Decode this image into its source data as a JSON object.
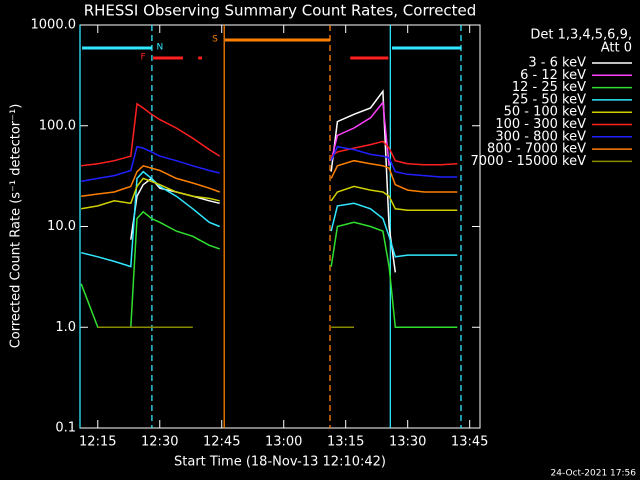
{
  "chart_data": {
    "type": "line",
    "title": "RHESSI Observing Summary Count Rates, Corrected",
    "x_label": "Start Time (18-Nov-13 12:10:42)",
    "y_label": "Corrected Count Rate (s⁻¹ detector⁻¹)",
    "legend_title": [
      "Det 1,3,4,5,6,9,",
      "Att 0"
    ],
    "footer": "24-Oct-2021 17:56",
    "ylog": true,
    "ylim": [
      0.1,
      1000
    ],
    "yticks": [
      0.1,
      {
        "value": 1,
        "label": "1.0"
      },
      {
        "value": 10,
        "label": "10.0"
      },
      {
        "value": 100,
        "label": "100.0"
      },
      {
        "value": 1000,
        "label": "1000.0"
      }
    ],
    "xlim": [
      730.7,
      827.5
    ],
    "xticks": [
      {
        "value": 735,
        "label": "12:15"
      },
      {
        "value": 750,
        "label": "12:30"
      },
      {
        "value": 765,
        "label": "12:45"
      },
      {
        "value": 780,
        "label": "13:00"
      },
      {
        "value": 795,
        "label": "13:15"
      },
      {
        "value": 810,
        "label": "13:30"
      },
      {
        "value": 825,
        "label": "13:45"
      }
    ],
    "x": [
      731,
      735,
      739,
      743,
      744.5,
      746,
      748,
      750,
      754,
      758,
      762,
      764.5,
      778,
      791.5,
      793,
      797,
      801,
      804,
      805.5,
      807,
      810,
      814,
      818,
      822
    ],
    "series": [
      {
        "name": "3 - 6 keV",
        "color": "#ffffff",
        "values": [
          null,
          null,
          null,
          7.4,
          20,
          26,
          30,
          24,
          22,
          20,
          18,
          17,
          null,
          35,
          110,
          130,
          150,
          220,
          10,
          3.5,
          null,
          null,
          null,
          null
        ]
      },
      {
        "name": "6 - 12 keV",
        "color": "#ff40ff",
        "values": [
          null,
          null,
          null,
          null,
          null,
          null,
          null,
          null,
          null,
          null,
          null,
          null,
          null,
          45,
          80,
          95,
          120,
          170,
          40,
          null,
          null,
          null,
          null,
          null
        ]
      },
      {
        "name": "12 - 25 keV",
        "color": "#30e030",
        "values": [
          2.7,
          1,
          1,
          1,
          12,
          14,
          12,
          11,
          9,
          8,
          6.5,
          6,
          null,
          4,
          10,
          11,
          10,
          9,
          4,
          1,
          1,
          1,
          1,
          1
        ]
      },
      {
        "name": "25 - 50 keV",
        "color": "#30e8ff",
        "values": [
          5.5,
          5,
          4.5,
          4,
          30,
          35,
          30,
          25,
          20,
          15,
          11,
          10,
          null,
          9,
          16,
          17,
          15,
          12,
          8,
          5,
          5.2,
          5.2,
          5.2,
          5.2
        ]
      },
      {
        "name": "50 - 100 keV",
        "color": "#d0d000",
        "values": [
          15,
          16,
          18,
          17,
          25,
          30,
          28,
          26,
          22,
          20,
          19,
          18,
          null,
          18,
          22,
          25,
          23,
          22,
          20,
          15,
          14.5,
          14.5,
          14.5,
          14.5
        ]
      },
      {
        "name": "100 - 300 keV",
        "color": "#ff2020",
        "values": [
          40,
          42,
          45,
          50,
          165,
          150,
          130,
          115,
          95,
          75,
          58,
          50,
          null,
          50,
          55,
          60,
          65,
          70,
          60,
          45,
          42,
          41,
          41,
          42
        ]
      },
      {
        "name": "300 - 800 keV",
        "color": "#2020ff",
        "values": [
          28,
          30,
          32,
          36,
          62,
          60,
          55,
          50,
          45,
          40,
          36,
          34,
          null,
          45,
          62,
          58,
          52,
          50,
          48,
          35,
          33,
          32,
          31,
          31
        ]
      },
      {
        "name": "800 - 7000 keV",
        "color": "#ff8000",
        "values": [
          20,
          21,
          22,
          25,
          35,
          40,
          38,
          36,
          30,
          27,
          24,
          22,
          null,
          30,
          40,
          45,
          42,
          40,
          38,
          26,
          23,
          22,
          22,
          22
        ]
      },
      {
        "name": "7000 - 15000 keV",
        "color": "#8a8a00",
        "values": [
          null,
          1,
          1,
          1,
          1,
          1,
          1,
          1,
          1,
          1,
          null,
          null,
          null,
          1,
          1,
          1,
          null,
          null,
          null,
          null,
          null,
          null,
          null,
          null
        ]
      }
    ],
    "vlines": [
      {
        "x": 730.7,
        "color": "#30e8ff",
        "dashed": false
      },
      {
        "x": 748.1,
        "color": "#30e8ff",
        "dashed": true
      },
      {
        "x": 765.6,
        "color": "#ff8000",
        "dashed": false
      },
      {
        "x": 791.2,
        "color": "#ff8000",
        "dashed": true
      },
      {
        "x": 805.8,
        "color": "#30e8ff",
        "dashed": false
      },
      {
        "x": 822.9,
        "color": "#30e8ff",
        "dashed": true
      }
    ],
    "flags": [
      {
        "label": "S",
        "color": "#ff8000",
        "segments": [
          [
            765.8,
            791.2
          ]
        ]
      },
      {
        "label": "N",
        "color": "#30e8ff",
        "segments": [
          [
            731.2,
            748.1
          ],
          [
            806.2,
            822.9
          ]
        ]
      },
      {
        "label": "F",
        "color": "#ff2020",
        "segments": [
          [
            748.4,
            755.6
          ],
          [
            759.3,
            760.2
          ],
          [
            796.1,
            805.3
          ]
        ]
      }
    ]
  }
}
